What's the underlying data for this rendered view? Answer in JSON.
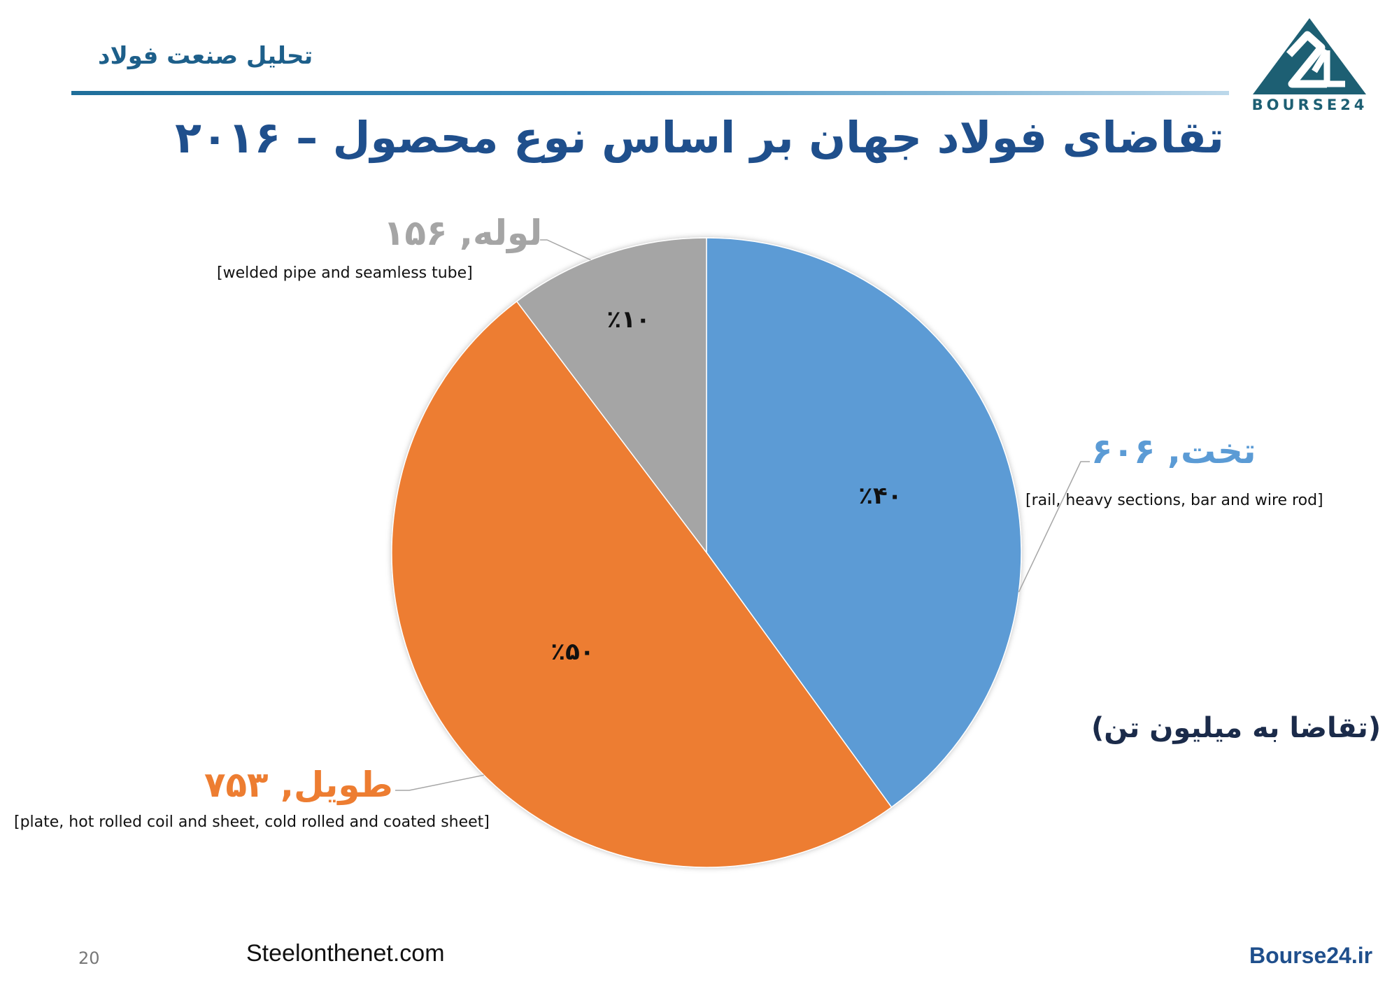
{
  "header": {
    "brand_text": "تحلیل صنعت فولاد",
    "logo_text": "BOURSE24"
  },
  "colors": {
    "flat": "#5b9bd5",
    "long": "#ed7d31",
    "pipe": "#a5a5a5",
    "title": "#1f4f8c"
  },
  "chart_data": {
    "type": "pie",
    "title": "تقاضای فولاد جهان بر اساس نوع محصول – ۲۰۱۶",
    "unit_note": "(تقاضا به میلیون تن)",
    "slices": [
      {
        "key": "flat",
        "label": "تخت, ۶۰۶",
        "name": "تخت",
        "value": 606,
        "percent_label": "٪۴۰",
        "description": "[rail, heavy sections, bar and wire rod]"
      },
      {
        "key": "long",
        "label": "طویل, ۷۵۳",
        "name": "طویل",
        "value": 753,
        "percent_label": "٪۵۰",
        "description": "[plate, hot rolled coil and sheet, cold rolled and coated sheet]"
      },
      {
        "key": "pipe",
        "label": "لوله, ۱۵۶",
        "name": "لوله",
        "value": 156,
        "percent_label": "٪۱۰",
        "description": "[welded pipe and seamless tube]"
      }
    ]
  },
  "footer": {
    "page_number": "20",
    "source_site": "Steelonthenet.com",
    "bourse_site": "Bourse24.ir"
  }
}
